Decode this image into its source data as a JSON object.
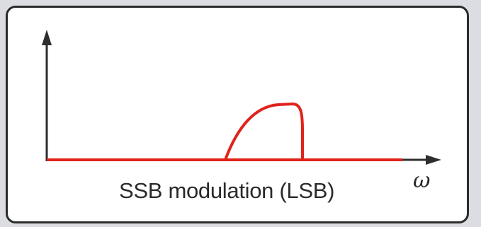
{
  "diagram": {
    "caption": "SSB modulation (LSB)",
    "x_axis_symbol": "ω",
    "colors": {
      "spectrum": "#e0231b",
      "axis": "#2e2e2e",
      "frame_border": "#2b2b2b",
      "background": "#dcdde2"
    }
  }
}
